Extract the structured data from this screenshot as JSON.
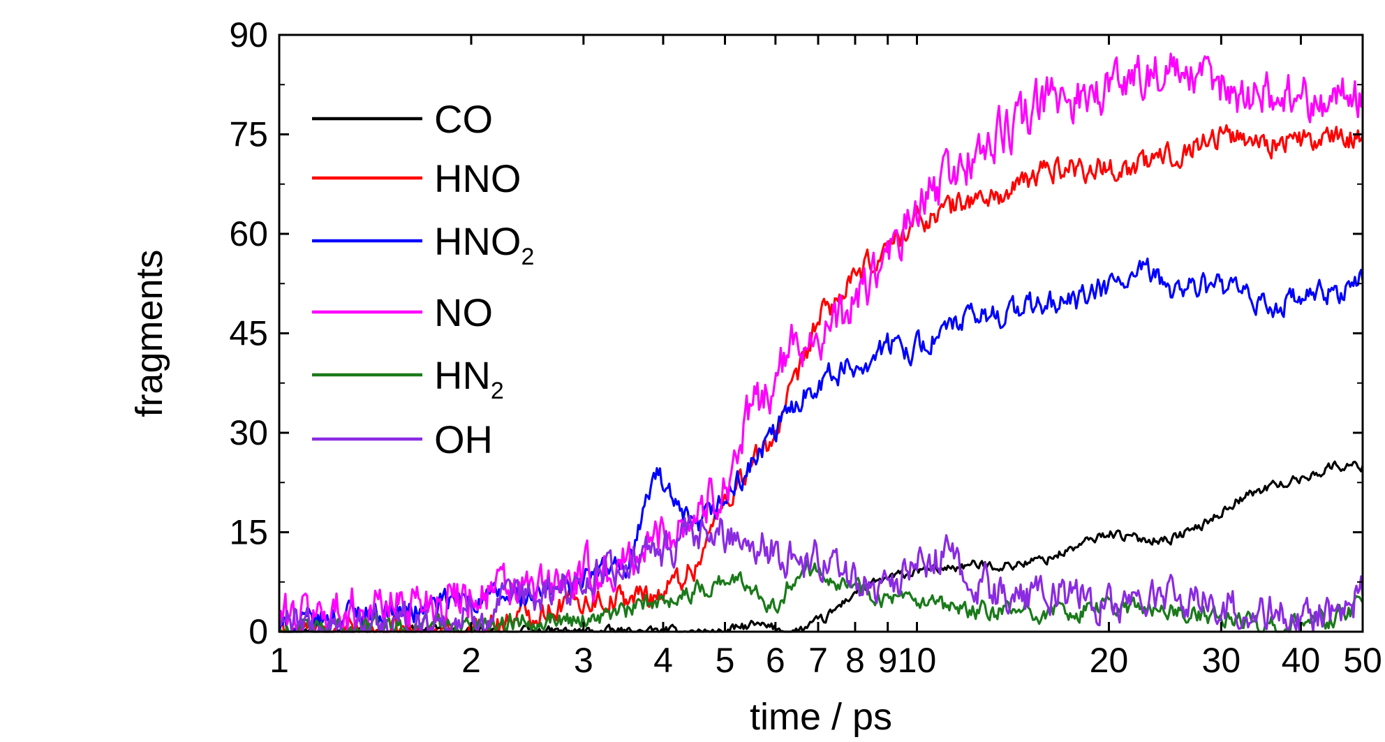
{
  "chart_data": {
    "type": "line",
    "xlabel": "time / ps",
    "ylabel": "fragments",
    "xscale": "log",
    "xlim": [
      1,
      50
    ],
    "ylim": [
      0,
      90
    ],
    "x_ticks": [
      1,
      2,
      3,
      4,
      5,
      6,
      7,
      8,
      9,
      10,
      20,
      30,
      40,
      50
    ],
    "x_tick_labels": [
      "1",
      "2",
      "3",
      "4",
      "5",
      "6",
      "7",
      "8",
      "9",
      "10",
      "20",
      "30",
      "40",
      "50"
    ],
    "y_ticks": [
      0,
      15,
      30,
      45,
      60,
      75,
      90
    ],
    "y_tick_labels": [
      "0",
      "15",
      "30",
      "45",
      "60",
      "75",
      "90"
    ],
    "legend_position": "top-left",
    "grid": false,
    "series": [
      {
        "name": "CO",
        "label_main": "CO",
        "label_sub": "",
        "color": "#000000",
        "noise": 0.6,
        "x": [
          1,
          2,
          4,
          5,
          5.5,
          6.5,
          7.2,
          8,
          9,
          10,
          12,
          14,
          16,
          18,
          20,
          22,
          25,
          28,
          32,
          36,
          40,
          45,
          50
        ],
        "y": [
          0,
          0,
          0,
          0,
          1,
          0,
          2,
          6,
          8,
          9,
          10,
          10,
          11,
          13,
          15,
          14,
          14,
          16,
          20,
          22,
          23,
          25,
          25
        ]
      },
      {
        "name": "HNO",
        "label_main": "HNO",
        "label_sub": "",
        "color": "#ff0000",
        "noise": 1.6,
        "x": [
          1,
          1.5,
          2,
          2.5,
          3,
          3.5,
          4,
          4.5,
          5,
          5.5,
          6,
          6.5,
          7,
          8,
          9,
          10,
          12,
          14,
          16,
          18,
          20,
          22,
          25,
          30,
          35,
          40,
          45,
          50
        ],
        "y": [
          0,
          0,
          0,
          3,
          5,
          5,
          6,
          10,
          20,
          25,
          30,
          38,
          47,
          53,
          58,
          62,
          65,
          66,
          70,
          70,
          70,
          70,
          72,
          75,
          74,
          74,
          74,
          75
        ]
      },
      {
        "name": "HNO2",
        "label_main": "HNO",
        "label_sub": "2",
        "color": "#0000ff",
        "noise": 1.6,
        "x": [
          1,
          1.3,
          1.6,
          2,
          2.5,
          3,
          3.5,
          3.9,
          4.2,
          4.5,
          5,
          5.5,
          6,
          6.5,
          7,
          7.5,
          8,
          9,
          10,
          12,
          15,
          18,
          20,
          23,
          25,
          30,
          35,
          40,
          45,
          50
        ],
        "y": [
          0,
          3,
          3,
          5,
          5,
          8,
          10,
          24,
          18,
          15,
          20,
          25,
          30,
          35,
          38,
          39,
          40,
          43,
          43,
          47,
          49,
          50,
          52,
          54,
          52,
          52,
          49,
          50,
          51,
          53
        ]
      },
      {
        "name": "NO",
        "label_main": "NO",
        "label_sub": "",
        "color": "#ff00ff",
        "noise": 3.0,
        "x": [
          1,
          1.5,
          2,
          2.5,
          3,
          3.5,
          4,
          4.5,
          5,
          5.5,
          6,
          6.5,
          7,
          7.5,
          8,
          9,
          10,
          11,
          12,
          14,
          16,
          18,
          20,
          23,
          25,
          30,
          35,
          40,
          45,
          50
        ],
        "y": [
          2,
          4,
          6,
          6,
          8,
          10,
          15,
          18,
          22,
          33,
          38,
          44,
          45,
          46,
          50,
          56,
          63,
          68,
          71,
          76,
          80,
          81,
          82,
          85,
          84,
          82,
          81,
          81,
          80,
          81
        ]
      },
      {
        "name": "HN2",
        "label_main": "HN",
        "label_sub": "2",
        "color": "#1a7a1a",
        "noise": 1.2,
        "x": [
          1,
          1.5,
          2,
          2.5,
          3,
          3.5,
          4,
          4.5,
          5,
          5.5,
          6,
          6.5,
          7,
          7.5,
          8,
          9,
          10,
          12,
          15,
          18,
          20,
          25,
          30,
          35,
          40,
          45,
          50
        ],
        "y": [
          0,
          1,
          1,
          2,
          2,
          3,
          5,
          6,
          8,
          7,
          4,
          9,
          10,
          8,
          7,
          5,
          4,
          3,
          3,
          3,
          4,
          3,
          2,
          1,
          1,
          2,
          4
        ]
      },
      {
        "name": "OH",
        "label_main": "OH",
        "label_sub": "",
        "color": "#8a2be2",
        "noise": 2.4,
        "x": [
          1,
          1.3,
          1.6,
          2,
          2.5,
          3,
          3.5,
          4,
          4.5,
          5,
          5.5,
          6,
          6.5,
          7,
          8,
          9,
          10,
          11,
          12,
          14,
          16,
          18,
          20,
          23,
          25,
          30,
          35,
          40,
          45,
          50
        ],
        "y": [
          1,
          0,
          1,
          2,
          5,
          8,
          10,
          12,
          14,
          15,
          14,
          12,
          11,
          11,
          8,
          7,
          9,
          12,
          8,
          5,
          6,
          5,
          4,
          5,
          5,
          4,
          3,
          2,
          3,
          6
        ]
      }
    ]
  }
}
